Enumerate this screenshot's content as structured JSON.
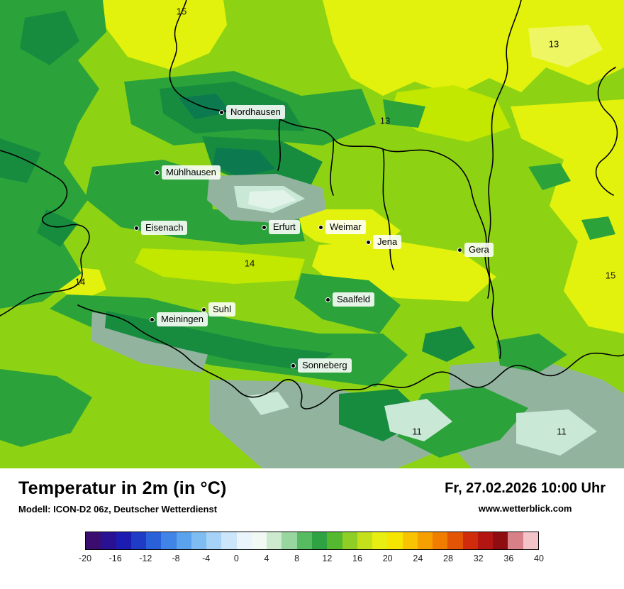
{
  "map": {
    "cities": [
      {
        "name": "Nordhausen"
      },
      {
        "name": "Mühlhausen"
      },
      {
        "name": "Eisenach"
      },
      {
        "name": "Erfurt"
      },
      {
        "name": "Weimar"
      },
      {
        "name": "Jena"
      },
      {
        "name": "Gera"
      },
      {
        "name": "Suhl"
      },
      {
        "name": "Meiningen"
      },
      {
        "name": "Saalfeld"
      },
      {
        "name": "Sonneberg"
      }
    ],
    "region_labels": [
      "15",
      "13",
      "13",
      "14",
      "14",
      "15",
      "11",
      "11"
    ],
    "palette": {
      "yellow": "#e3f20c",
      "yellow_green": "#c3e800",
      "green": "#2ba33a",
      "dark_green": "#178c3f",
      "teal_green": "#0c7a4e",
      "cool_sage": "#92b49e",
      "mint": "#c9e8d6"
    }
  },
  "footer": {
    "title": "Temperatur in 2m (in °C)",
    "model_line": "Modell: ICON-D2 06z, Deutscher Wetterdienst",
    "datetime": "Fr, 27.02.2026 10:00 Uhr",
    "website": "www.wetterblick.com"
  },
  "legend": {
    "colors": [
      "#3a0d6e",
      "#2a1194",
      "#1c1cb0",
      "#1f3cc6",
      "#2a60d8",
      "#3f84e6",
      "#5aa2ec",
      "#7ebcf2",
      "#a5d2f6",
      "#cbe5fa",
      "#eaf4fb",
      "#f2f8f3",
      "#cdeacf",
      "#97d69f",
      "#57bb62",
      "#2fa343",
      "#55b92f",
      "#8fce24",
      "#c3e01a",
      "#e8ee12",
      "#f6e500",
      "#f8c300",
      "#f6a000",
      "#f07c00",
      "#e35405",
      "#d02c0c",
      "#b21512",
      "#8e0d10",
      "#d88088",
      "#f3c3c8"
    ],
    "ticks": [
      "-20",
      "-16",
      "-12",
      "-8",
      "-4",
      "0",
      "4",
      "8",
      "12",
      "16",
      "20",
      "24",
      "28",
      "32",
      "36",
      "40"
    ]
  }
}
